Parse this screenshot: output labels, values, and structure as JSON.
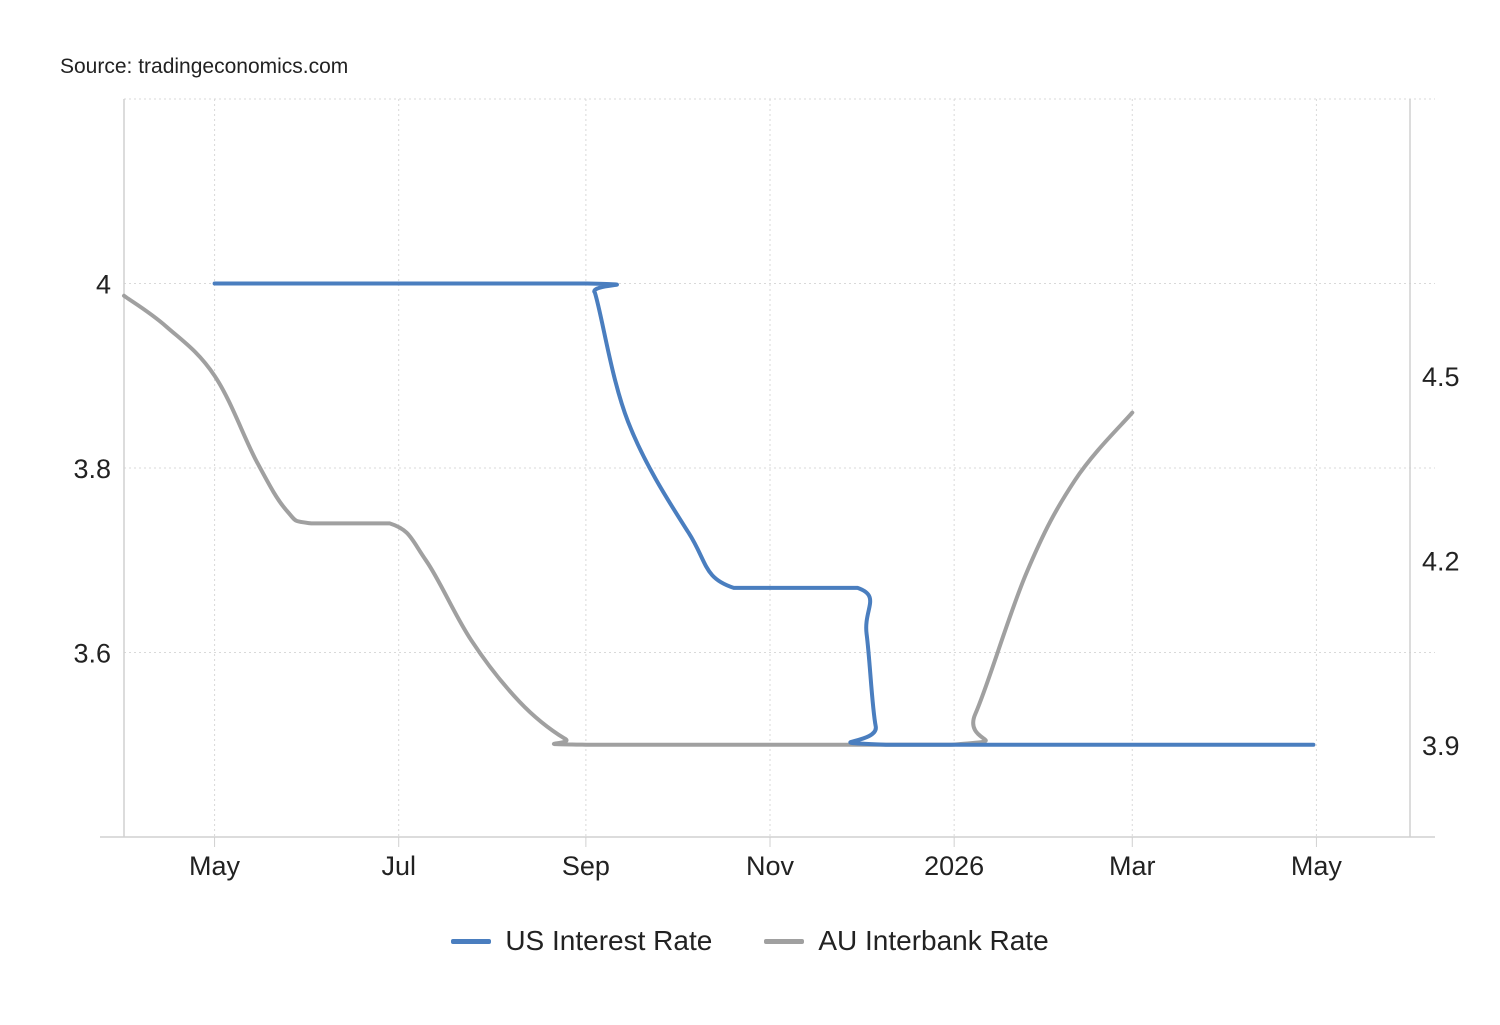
{
  "source": "Source: tradingeconomics.com",
  "colors": {
    "us": "#4a7ebf",
    "au": "#a0a0a0",
    "grid": "#d9d9d9",
    "axis": "#d0d0d0"
  },
  "chart_data": {
    "type": "line",
    "title": "",
    "xlabel": "",
    "x_ticks": [
      {
        "label": "May",
        "date": "2025-05-01"
      },
      {
        "label": "Jul",
        "date": "2025-07-01"
      },
      {
        "label": "Sep",
        "date": "2025-09-01"
      },
      {
        "label": "Nov",
        "date": "2025-11-01"
      },
      {
        "label": "2026",
        "date": "2026-01-01"
      },
      {
        "label": "Mar",
        "date": "2026-03-01"
      },
      {
        "label": "May",
        "date": "2026-05-01"
      }
    ],
    "xlim": [
      "2025-04-01",
      "2026-06-01"
    ],
    "y_left": {
      "ticks": [
        "4",
        "3.8",
        "3.6"
      ],
      "ylim": [
        3.4,
        4.2
      ]
    },
    "y_right": {
      "ticks": [
        "4.5",
        "4.2",
        "3.9"
      ],
      "ylim": [
        3.75,
        4.95
      ]
    },
    "grid": true,
    "legend_position": "bottom-center",
    "series": [
      {
        "name": "US Interest Rate",
        "axis": "left",
        "color": "#4a7ebf",
        "points": [
          [
            "2025-05-01",
            4.0
          ],
          [
            "2025-09-01",
            4.0
          ],
          [
            "2025-09-04",
            3.99
          ],
          [
            "2025-09-15",
            3.85
          ],
          [
            "2025-10-05",
            3.73
          ],
          [
            "2025-10-20",
            3.67
          ],
          [
            "2025-11-30",
            3.67
          ],
          [
            "2025-12-03",
            3.62
          ],
          [
            "2025-12-06",
            3.52
          ],
          [
            "2025-12-10",
            3.5
          ],
          [
            "2026-04-30",
            3.5
          ]
        ]
      },
      {
        "name": "AU Interbank Rate",
        "axis": "right",
        "color": "#a0a0a0",
        "points": [
          [
            "2025-04-01",
            4.63
          ],
          [
            "2025-04-15",
            4.58
          ],
          [
            "2025-05-01",
            4.5
          ],
          [
            "2025-05-15",
            4.36
          ],
          [
            "2025-05-25",
            4.28
          ],
          [
            "2025-06-02",
            4.26
          ],
          [
            "2025-06-28",
            4.26
          ],
          [
            "2025-07-10",
            4.2
          ],
          [
            "2025-07-25",
            4.07
          ],
          [
            "2025-08-10",
            3.97
          ],
          [
            "2025-08-25",
            3.91
          ],
          [
            "2025-09-02",
            3.9
          ],
          [
            "2025-12-31",
            3.9
          ],
          [
            "2026-01-08",
            3.95
          ],
          [
            "2026-01-25",
            4.18
          ],
          [
            "2026-02-10",
            4.33
          ],
          [
            "2026-03-01",
            4.44
          ]
        ]
      }
    ]
  }
}
